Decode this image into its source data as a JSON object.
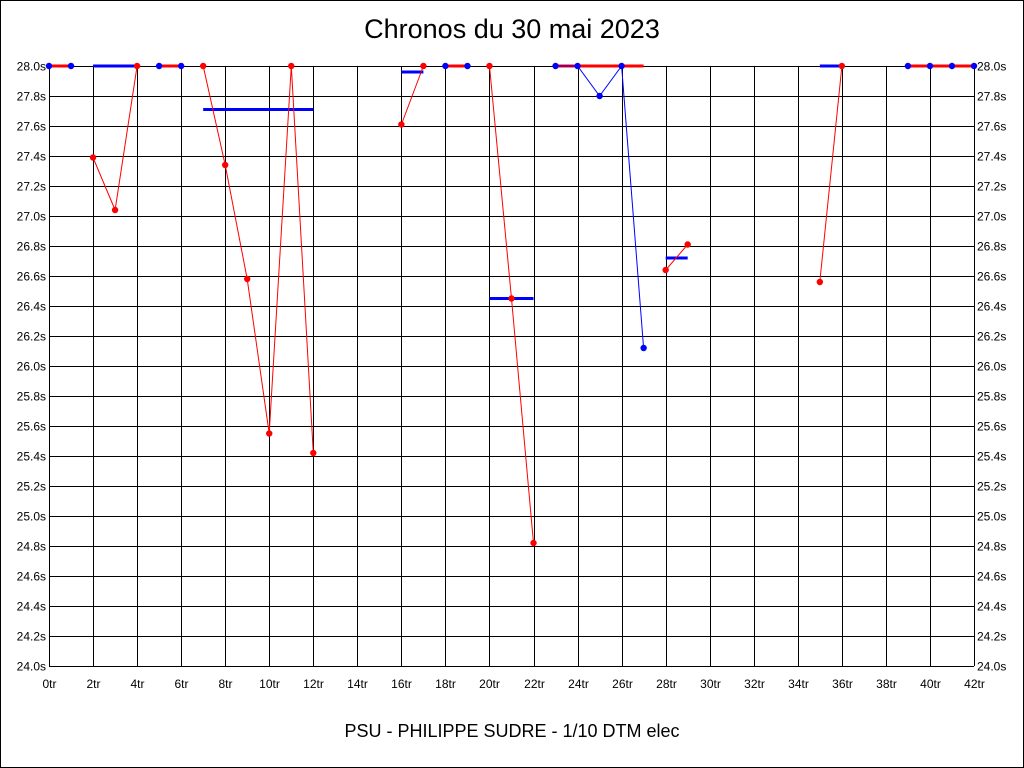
{
  "chart_data": {
    "type": "line",
    "title": "Chronos du 30 mai 2023",
    "caption": "PSU - PHILIPPE SUDRE - 1/10 DTM elec",
    "xlim": [
      0,
      42
    ],
    "ylim": [
      24.0,
      28.0
    ],
    "x_ticks": [
      "0tr",
      "2tr",
      "4tr",
      "6tr",
      "8tr",
      "10tr",
      "12tr",
      "14tr",
      "16tr",
      "18tr",
      "20tr",
      "22tr",
      "24tr",
      "26tr",
      "28tr",
      "30tr",
      "32tr",
      "34tr",
      "36tr",
      "38tr",
      "40tr",
      "42tr"
    ],
    "y_ticks": [
      "24.0s",
      "24.2s",
      "24.4s",
      "24.6s",
      "24.8s",
      "25.0s",
      "25.2s",
      "25.4s",
      "25.6s",
      "25.8s",
      "26.0s",
      "26.2s",
      "26.4s",
      "26.6s",
      "26.8s",
      "27.0s",
      "27.2s",
      "27.4s",
      "27.6s",
      "27.8s",
      "28.0s"
    ],
    "grid": true,
    "colors": {
      "red": "#ff0000",
      "blue": "#0000ff",
      "grid": "#000000"
    },
    "series": [
      {
        "color": "red",
        "points": [
          [
            0,
            28.0
          ],
          [
            1,
            28.0
          ]
        ]
      },
      {
        "color": "red",
        "points": [
          [
            2,
            27.39
          ],
          [
            3,
            27.04
          ],
          [
            4,
            28.0
          ]
        ]
      },
      {
        "color": "red",
        "points": [
          [
            5,
            28.0
          ],
          [
            6,
            28.0
          ]
        ]
      },
      {
        "color": "red",
        "points": [
          [
            7,
            28.0
          ],
          [
            8,
            27.34
          ],
          [
            9,
            26.58
          ],
          [
            10,
            25.55
          ],
          [
            11,
            28.0
          ],
          [
            12,
            25.42
          ]
        ]
      },
      {
        "color": "red",
        "points": [
          [
            16,
            27.61
          ],
          [
            17,
            28.0
          ]
        ]
      },
      {
        "color": "red",
        "points": [
          [
            18,
            28.0
          ],
          [
            19,
            28.0
          ]
        ]
      },
      {
        "color": "red",
        "points": [
          [
            20,
            28.0
          ],
          [
            21,
            26.45
          ],
          [
            22,
            24.82
          ]
        ]
      },
      {
        "color": "blue",
        "points": [
          [
            23,
            28.0
          ],
          [
            24,
            28.0
          ],
          [
            25,
            27.8
          ],
          [
            26,
            28.0
          ],
          [
            27,
            26.12
          ]
        ]
      },
      {
        "color": "red",
        "points": [
          [
            28,
            26.64
          ],
          [
            29,
            26.81
          ]
        ]
      },
      {
        "color": "red",
        "points": [
          [
            35,
            26.56
          ],
          [
            36,
            28.0
          ]
        ]
      },
      {
        "color": "red",
        "points": [
          [
            39,
            28.0
          ],
          [
            40,
            28.0
          ],
          [
            41,
            28.0
          ],
          [
            42,
            28.0
          ]
        ]
      }
    ],
    "markers": [
      {
        "x": 0,
        "y": 28.0,
        "color": "blue"
      },
      {
        "x": 1,
        "y": 28.0,
        "color": "blue"
      },
      {
        "x": 2,
        "y": 27.39,
        "color": "red"
      },
      {
        "x": 3,
        "y": 27.04,
        "color": "red"
      },
      {
        "x": 4,
        "y": 28.0,
        "color": "red"
      },
      {
        "x": 5,
        "y": 28.0,
        "color": "blue"
      },
      {
        "x": 6,
        "y": 28.0,
        "color": "blue"
      },
      {
        "x": 7,
        "y": 28.0,
        "color": "red"
      },
      {
        "x": 8,
        "y": 27.34,
        "color": "red"
      },
      {
        "x": 9,
        "y": 26.58,
        "color": "red"
      },
      {
        "x": 10,
        "y": 25.55,
        "color": "red"
      },
      {
        "x": 11,
        "y": 28.0,
        "color": "red"
      },
      {
        "x": 12,
        "y": 25.42,
        "color": "red"
      },
      {
        "x": 16,
        "y": 27.61,
        "color": "red"
      },
      {
        "x": 17,
        "y": 28.0,
        "color": "red"
      },
      {
        "x": 18,
        "y": 28.0,
        "color": "blue"
      },
      {
        "x": 19,
        "y": 28.0,
        "color": "blue"
      },
      {
        "x": 20,
        "y": 28.0,
        "color": "red"
      },
      {
        "x": 21,
        "y": 26.45,
        "color": "red"
      },
      {
        "x": 22,
        "y": 24.82,
        "color": "red"
      },
      {
        "x": 23,
        "y": 28.0,
        "color": "blue"
      },
      {
        "x": 24,
        "y": 28.0,
        "color": "blue"
      },
      {
        "x": 25,
        "y": 27.8,
        "color": "blue"
      },
      {
        "x": 26,
        "y": 28.0,
        "color": "blue"
      },
      {
        "x": 27,
        "y": 26.12,
        "color": "blue"
      },
      {
        "x": 28,
        "y": 26.64,
        "color": "red"
      },
      {
        "x": 29,
        "y": 26.81,
        "color": "red"
      },
      {
        "x": 35,
        "y": 26.56,
        "color": "red"
      },
      {
        "x": 36,
        "y": 28.0,
        "color": "red"
      },
      {
        "x": 39,
        "y": 28.0,
        "color": "blue"
      },
      {
        "x": 40,
        "y": 28.0,
        "color": "blue"
      },
      {
        "x": 41,
        "y": 28.0,
        "color": "blue"
      },
      {
        "x": 42,
        "y": 28.0,
        "color": "blue"
      }
    ],
    "segments": [
      {
        "x1": 0,
        "x2": 1,
        "y": 28.0,
        "color": "red"
      },
      {
        "x1": 2,
        "x2": 4,
        "y": 28.0,
        "color": "blue"
      },
      {
        "x1": 5,
        "x2": 6,
        "y": 28.0,
        "color": "red"
      },
      {
        "x1": 7,
        "x2": 12,
        "y": 27.71,
        "color": "blue"
      },
      {
        "x1": 16,
        "x2": 17,
        "y": 27.96,
        "color": "blue"
      },
      {
        "x1": 18,
        "x2": 19,
        "y": 28.0,
        "color": "red"
      },
      {
        "x1": 20,
        "x2": 22,
        "y": 26.45,
        "color": "blue"
      },
      {
        "x1": 23,
        "x2": 27,
        "y": 28.0,
        "color": "red"
      },
      {
        "x1": 28,
        "x2": 29,
        "y": 26.72,
        "color": "blue"
      },
      {
        "x1": 35,
        "x2": 36,
        "y": 28.0,
        "color": "blue"
      },
      {
        "x1": 39,
        "x2": 42,
        "y": 28.0,
        "color": "red"
      }
    ]
  }
}
